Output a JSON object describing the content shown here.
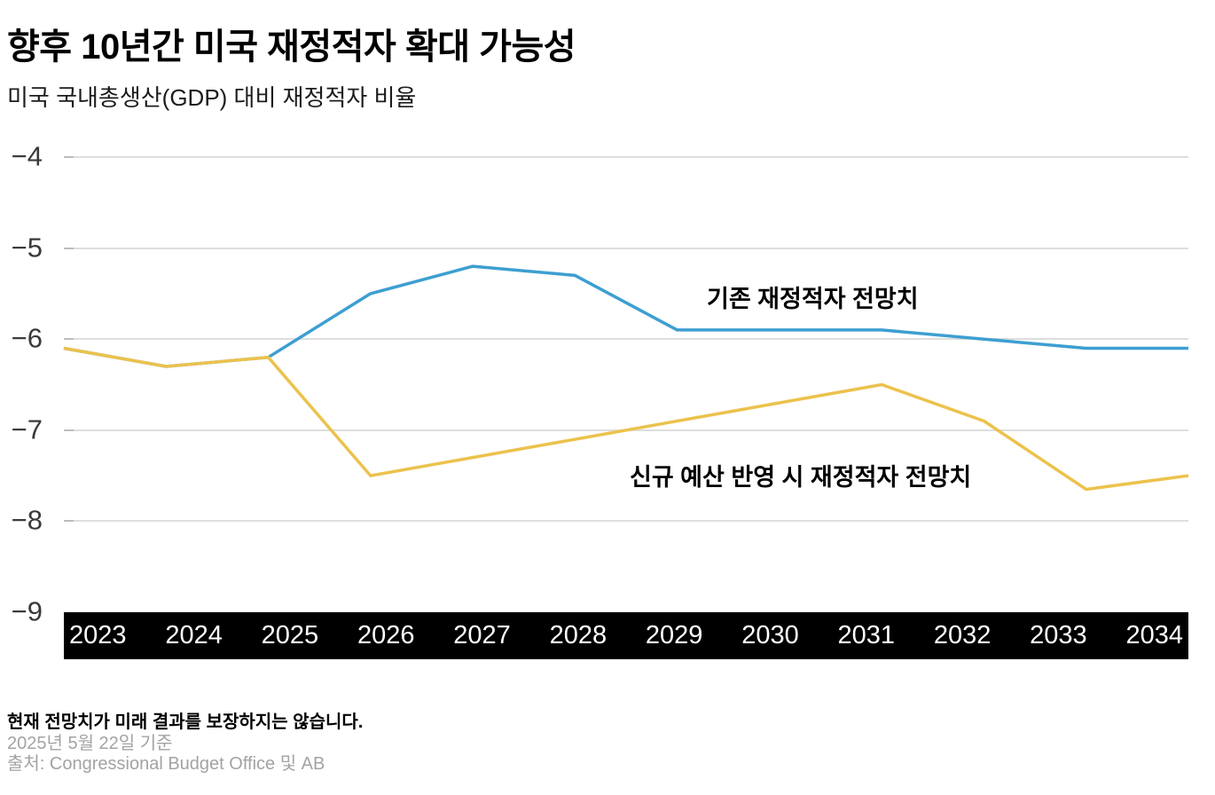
{
  "header": {
    "title": "향후 10년간 미국 재정적자 확대 가능성",
    "subtitle": "미국 국내총생산(GDP) 대비 재정적자 비율"
  },
  "chart_data": {
    "type": "line",
    "categories": [
      "2023",
      "2024",
      "2025",
      "2026",
      "2027",
      "2028",
      "2029",
      "2030",
      "2031",
      "2032",
      "2033",
      "2034"
    ],
    "series": [
      {
        "id": "existing-deficit-forecast",
        "name": "기존 재정적자 전망치",
        "color": "#3d9fd1",
        "values": [
          -6.1,
          -6.3,
          -6.2,
          -5.5,
          -5.2,
          -5.3,
          -5.9,
          -5.9,
          -5.9,
          -6.0,
          -6.1,
          -6.1
        ]
      },
      {
        "id": "new-budget-deficit-forecast",
        "name": "신규 예산 반영 시 재정적자 전망치",
        "color": "#ecc24d",
        "values": [
          -6.1,
          -6.3,
          -6.2,
          -7.5,
          -7.3,
          -7.1,
          -6.9,
          -6.7,
          -6.5,
          -6.9,
          -7.65,
          -7.5
        ]
      }
    ],
    "title": "향후 10년간 미국 재정적자 확대 가능성",
    "xlabel": "",
    "ylabel": "미국 국내총생산(GDP) 대비 재정적자 비율",
    "ylim": [
      -9,
      -4
    ],
    "yticks": [
      -4,
      -5,
      -6,
      -7,
      -8,
      -9
    ],
    "ytick_labels": [
      "−4",
      "−5",
      "−6",
      "−7",
      "−8",
      "−9"
    ],
    "grid": "horizontal",
    "legend_position": "inline-annotations-on-plot",
    "x_axis_style": "black band with white year labels"
  },
  "footer": {
    "disclaimer": "현재 전망치가 미래 결과를 보장하지는 않습니다.",
    "as_of": "2025년 5월 22일 기준",
    "source": "출처: Congressional Budget Office 및 AB"
  },
  "colors": {
    "existing_line": "#3d9fd1",
    "new_budget_line": "#ecc24d",
    "axis_band": "#000000",
    "gridline": "#dedede",
    "tick": "#bdbdbd"
  }
}
